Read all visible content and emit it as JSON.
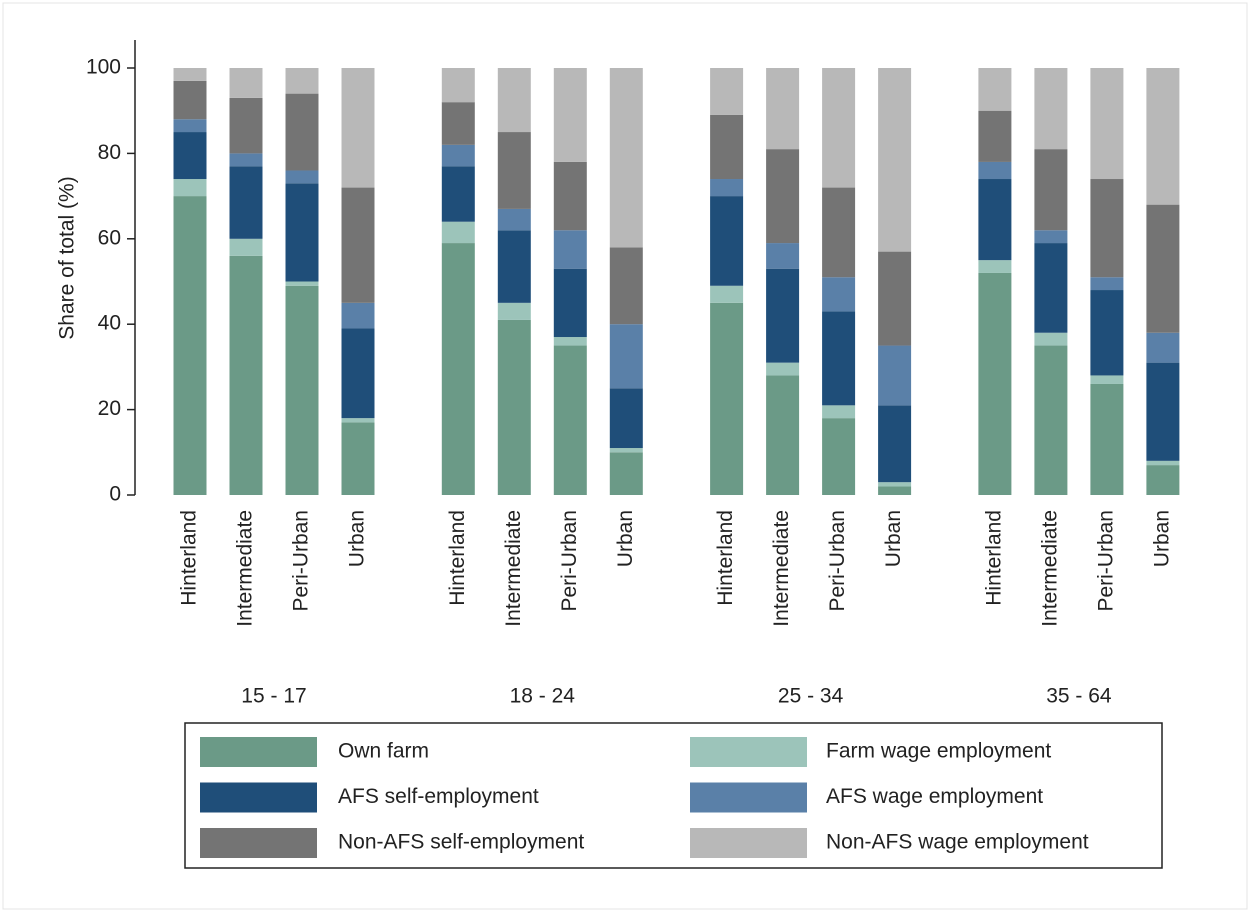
{
  "chart_data": {
    "type": "stacked-bar",
    "y_label": "Share of total (%)",
    "groups": [
      "15 - 17",
      "18 - 24",
      "25 - 34",
      "35 - 64"
    ],
    "categories": [
      "Hinterland",
      "Intermediate",
      "Peri-Urban",
      "Urban",
      "Hinterland",
      "Intermediate",
      "Peri-Urban",
      "Urban",
      "Hinterland",
      "Intermediate",
      "Peri-Urban",
      "Urban",
      "Hinterland",
      "Intermediate",
      "Peri-Urban",
      "Urban"
    ],
    "series": [
      {
        "name": "Own farm",
        "color": "#6b9a87",
        "values": [
          70,
          56,
          49,
          17,
          59,
          41,
          35,
          10,
          45,
          28,
          18,
          2,
          52,
          35,
          26,
          7
        ]
      },
      {
        "name": "Farm wage employment",
        "color": "#9cc4ba",
        "values": [
          4,
          4,
          1,
          1,
          5,
          4,
          2,
          1,
          4,
          3,
          3,
          1,
          3,
          3,
          2,
          1
        ]
      },
      {
        "name": "AFS self-employment",
        "color": "#1f4e79",
        "values": [
          11,
          17,
          23,
          21,
          13,
          17,
          16,
          14,
          21,
          22,
          22,
          18,
          19,
          21,
          20,
          23
        ]
      },
      {
        "name": "AFS wage employment",
        "color": "#5a80a8",
        "values": [
          3,
          3,
          3,
          6,
          5,
          5,
          9,
          15,
          4,
          6,
          8,
          14,
          4,
          3,
          3,
          7
        ]
      },
      {
        "name": "Non-AFS self-employment",
        "color": "#747474",
        "values": [
          9,
          13,
          18,
          27,
          10,
          18,
          16,
          18,
          15,
          22,
          21,
          22,
          12,
          19,
          23,
          30
        ]
      },
      {
        "name": "Non-AFS wage employment",
        "color": "#b8b8b8",
        "values": [
          3,
          7,
          6,
          28,
          8,
          15,
          22,
          42,
          11,
          19,
          28,
          43,
          10,
          19,
          26,
          32
        ]
      }
    ],
    "ylim": [
      0,
      100
    ],
    "yticks": [
      0,
      20,
      40,
      60,
      80,
      100
    ],
    "grid": false,
    "legend": "bottom"
  }
}
